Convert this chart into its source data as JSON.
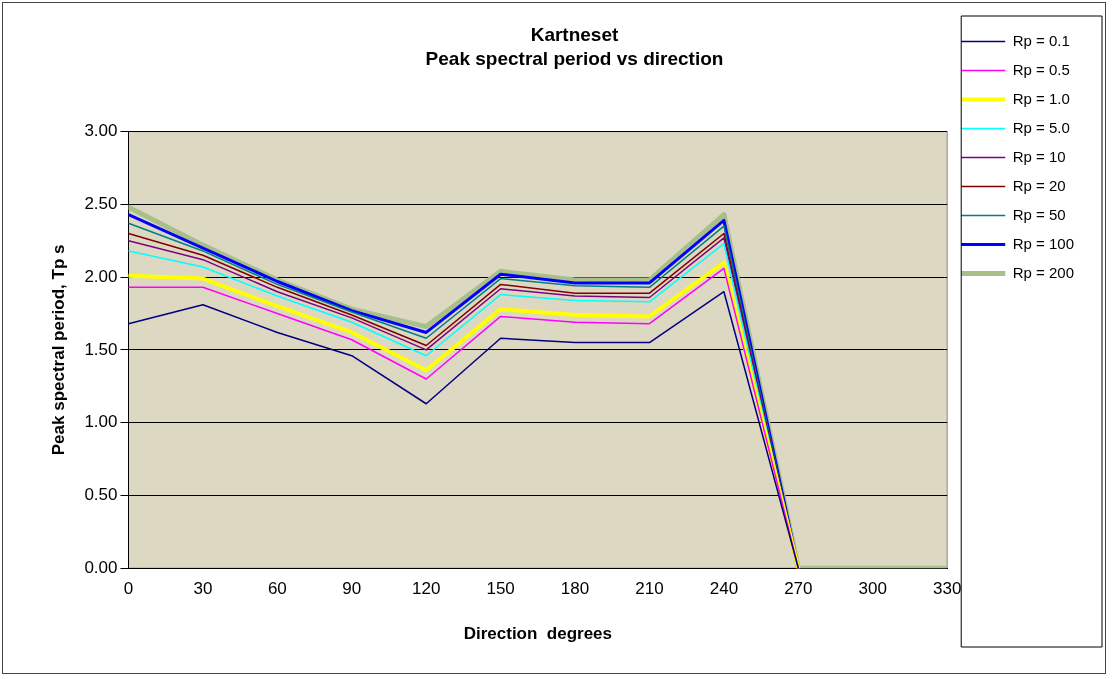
{
  "chart_data": {
    "type": "line",
    "title": "Kartneset",
    "subtitle": "Peak spectral period vs direction",
    "xlabel": "Direction  degrees",
    "ylabel": "Peak spectral period, Tp s",
    "x": [
      0,
      30,
      60,
      90,
      120,
      150,
      180,
      210,
      240,
      270,
      300,
      330
    ],
    "xlim": [
      0,
      330
    ],
    "xticks": [
      0,
      30,
      60,
      90,
      120,
      150,
      180,
      210,
      240,
      270,
      300,
      330
    ],
    "ylim": [
      0,
      3
    ],
    "yticks": [
      {
        "value": 0,
        "label": "0.00"
      },
      {
        "value": 0.5,
        "label": "0.50"
      },
      {
        "value": 1,
        "label": "1.00"
      },
      {
        "value": 1.5,
        "label": "1.50"
      },
      {
        "value": 2,
        "label": "2.00"
      },
      {
        "value": 2.5,
        "label": "2.50"
      },
      {
        "value": 3,
        "label": "3.00"
      }
    ],
    "grid": "y",
    "legend": "right",
    "marker": "none",
    "line_style": "solid",
    "series": [
      {
        "name": "Rp = 0.1",
        "color": "#000080",
        "values": [
          1.68,
          1.81,
          1.62,
          1.46,
          1.13,
          1.58,
          1.55,
          1.55,
          1.9,
          0,
          null,
          null
        ]
      },
      {
        "name": "Rp = 0.5",
        "color": "#ff00ff",
        "values": [
          1.93,
          1.93,
          1.75,
          1.57,
          1.3,
          1.73,
          1.69,
          1.68,
          2.06,
          0,
          null,
          null
        ]
      },
      {
        "name": "Rp = 1.0",
        "color": "#ffff00",
        "values": [
          2.01,
          1.99,
          1.8,
          1.62,
          1.36,
          1.78,
          1.74,
          1.73,
          2.1,
          0,
          null,
          null
        ]
      },
      {
        "name": "Rp = 5.0",
        "color": "#00ffff",
        "values": [
          2.18,
          2.07,
          1.87,
          1.69,
          1.46,
          1.88,
          1.84,
          1.83,
          2.23,
          0,
          null,
          null
        ]
      },
      {
        "name": "Rp = 10",
        "color": "#800080",
        "values": [
          2.25,
          2.12,
          1.9,
          1.72,
          1.5,
          1.92,
          1.87,
          1.86,
          2.27,
          0,
          null,
          null
        ]
      },
      {
        "name": "Rp = 20",
        "color": "#800000",
        "values": [
          2.3,
          2.15,
          1.93,
          1.74,
          1.53,
          1.95,
          1.89,
          1.89,
          2.3,
          0,
          null,
          null
        ]
      },
      {
        "name": "Rp = 50",
        "color": "#008080",
        "values": [
          2.37,
          2.18,
          1.95,
          1.76,
          1.58,
          1.99,
          1.94,
          1.93,
          2.35,
          0,
          null,
          null
        ]
      },
      {
        "name": "Rp = 100",
        "color": "#0000ff",
        "values": [
          2.43,
          2.2,
          1.97,
          1.77,
          1.62,
          2.02,
          1.96,
          1.96,
          2.39,
          0,
          null,
          null
        ]
      },
      {
        "name": "Rp = 200",
        "color": "#a9bf8a",
        "values": [
          2.48,
          2.22,
          1.98,
          1.78,
          1.66,
          2.04,
          1.98,
          1.98,
          2.43,
          0,
          0,
          0
        ]
      }
    ]
  }
}
